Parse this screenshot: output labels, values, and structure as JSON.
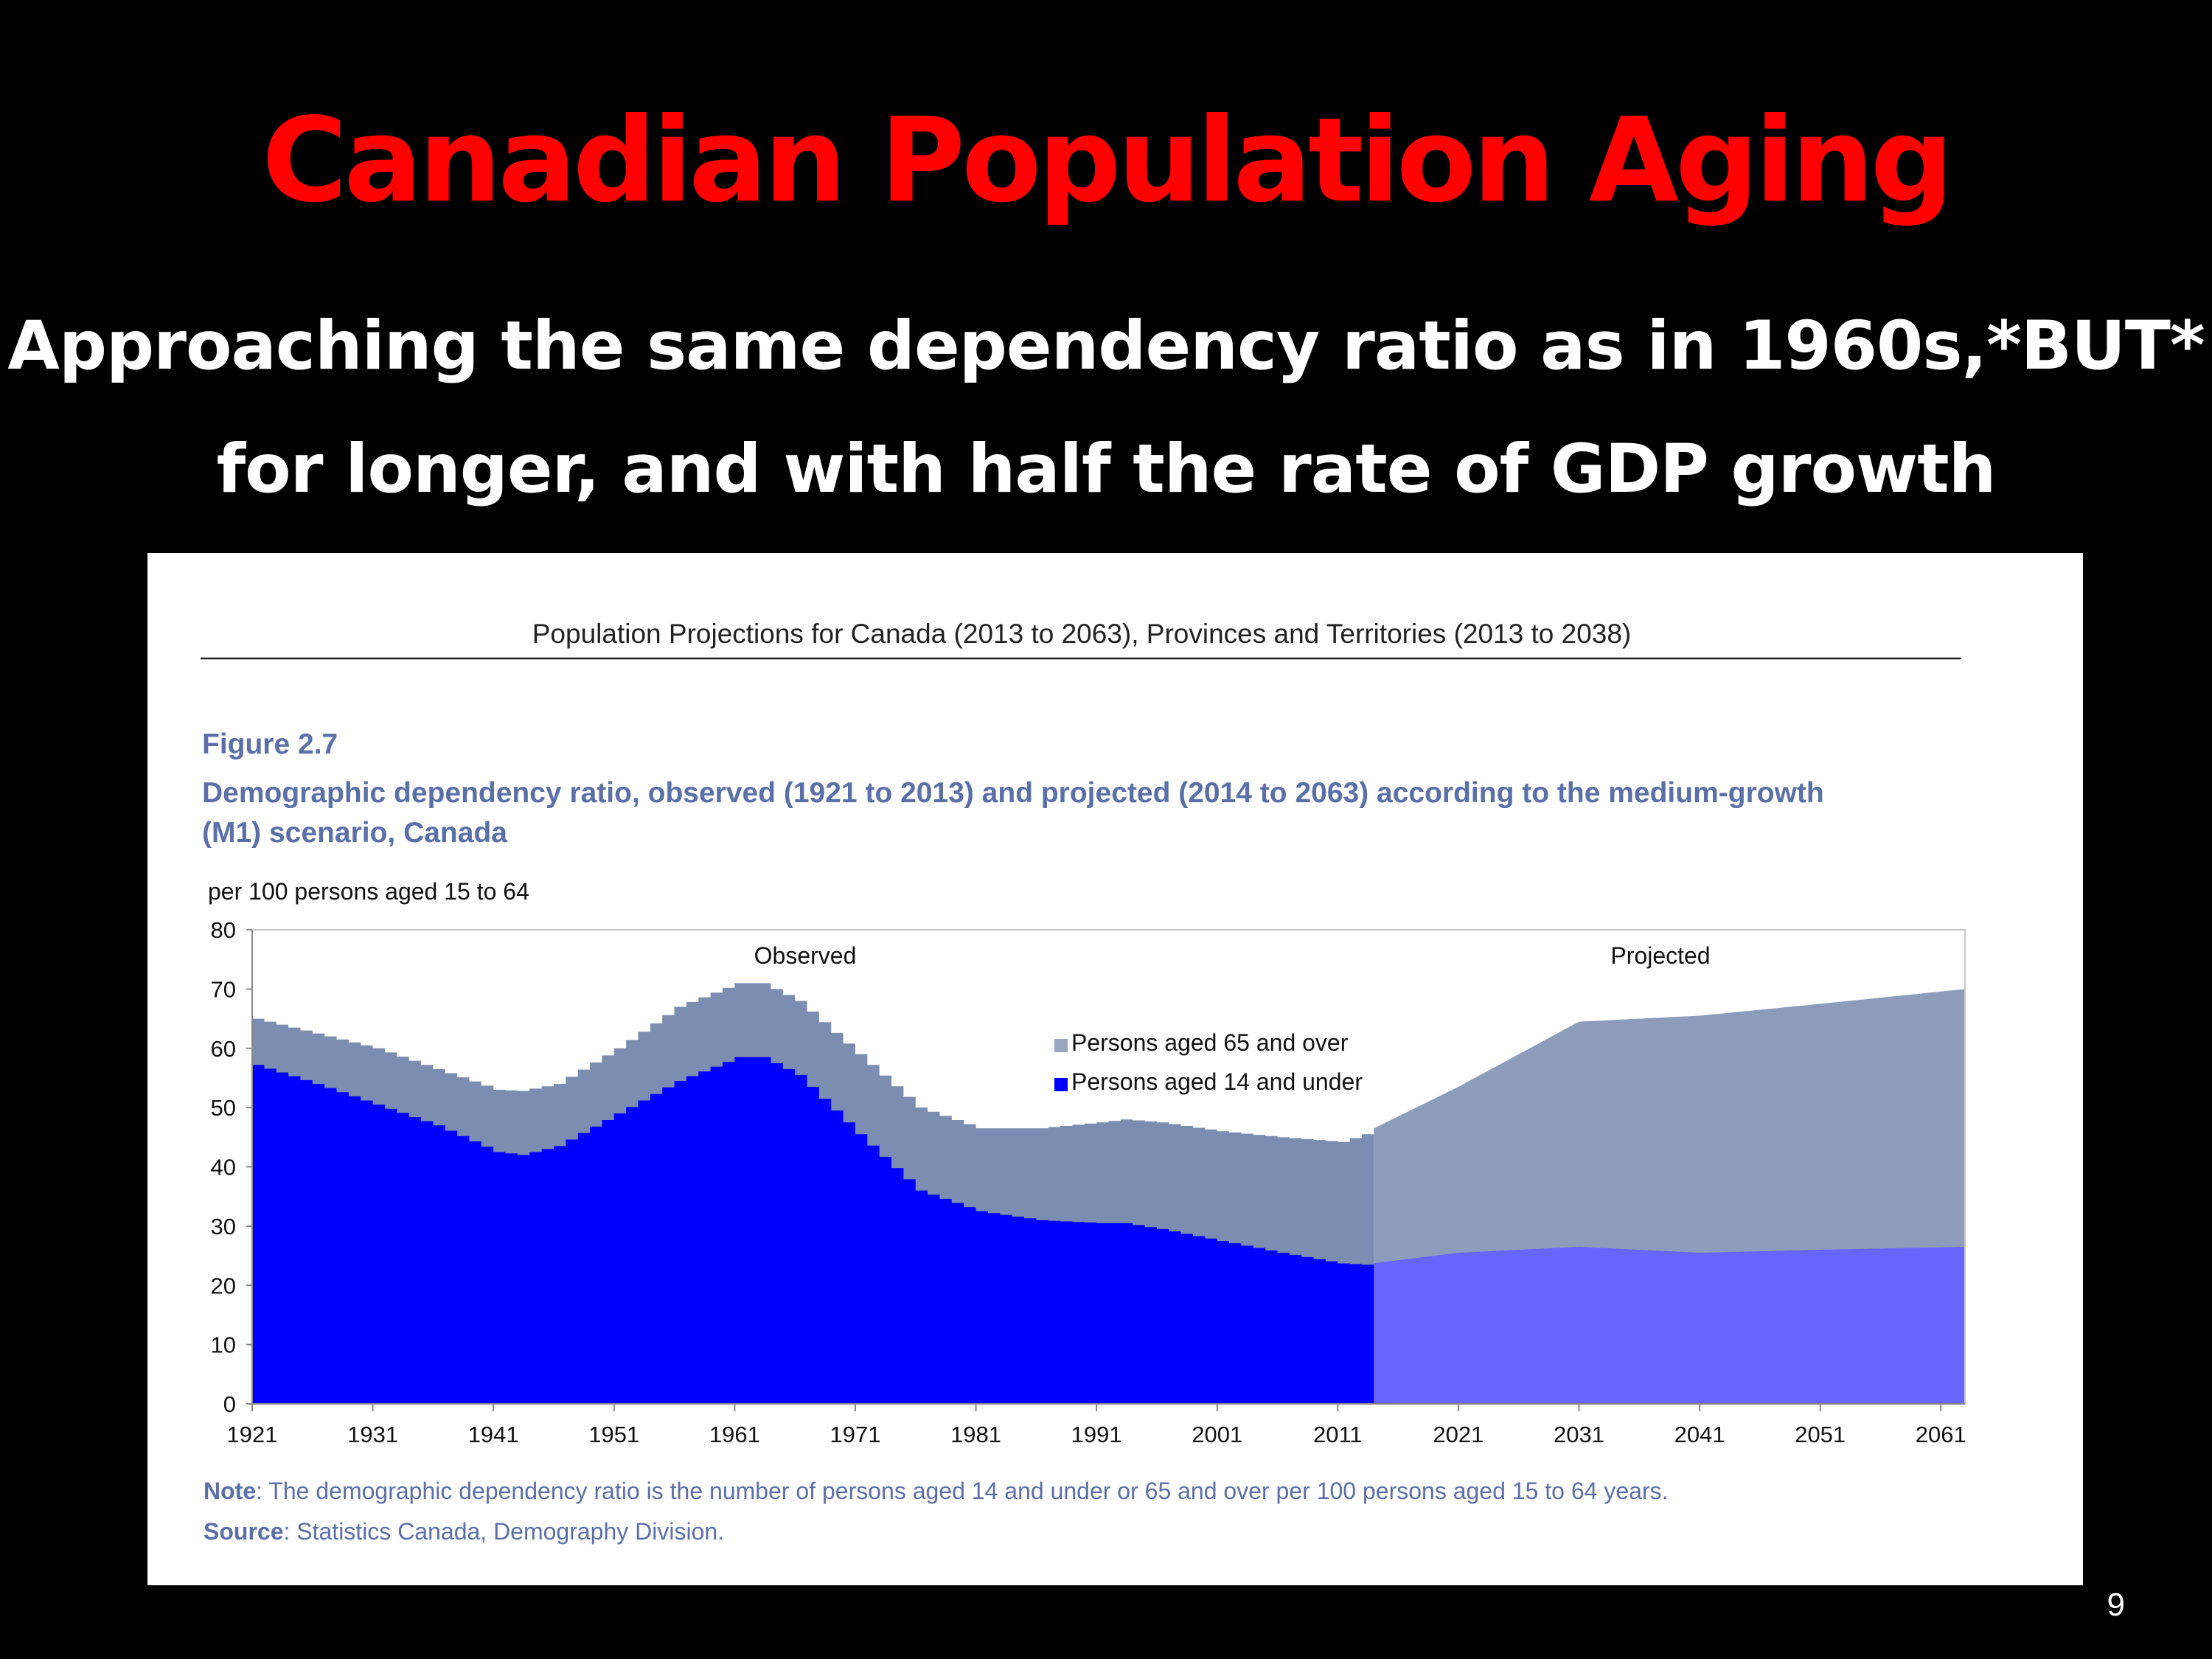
{
  "slide": {
    "title": "Canadian Population Aging",
    "subtitle_line1": "Approaching the same dependency ratio as in 1960s,*BUT*",
    "subtitle_line2": "for longer, and with half the rate of GDP growth",
    "page_number": "9"
  },
  "report": {
    "header": "Population Projections for Canada (2013 to 2063), Provinces and Territories (2013 to 2038)",
    "figure_label": "Figure 2.7",
    "figure_title_line1": "Demographic dependency ratio, observed (1921 to 2013) and projected (2014 to 2063) according to the medium-growth",
    "figure_title_line2": "(M1) scenario, Canada",
    "note_label": "Note",
    "note_text": ": The demographic dependency ratio is the number of persons aged 14 and under or 65 and over per 100 persons aged 15 to 64 years.",
    "source_label": "Source",
    "source_text": ": Statistics Canada, Demography Division."
  },
  "chart_data": {
    "type": "area",
    "stacked": true,
    "ylabel": "per 100 persons aged 15 to 64",
    "ylim": [
      0,
      80
    ],
    "yticks": [
      0,
      10,
      20,
      30,
      40,
      50,
      60,
      70,
      80
    ],
    "xlim": [
      1921,
      2063
    ],
    "xticks": [
      1921,
      1931,
      1941,
      1951,
      1961,
      1971,
      1981,
      1991,
      2001,
      2011,
      2021,
      2031,
      2041,
      2051,
      2061
    ],
    "grid": false,
    "legend_position": "center",
    "annotations": [
      "Observed",
      "Projected"
    ],
    "observed_range": [
      1921,
      2013
    ],
    "projected_range": [
      2014,
      2063
    ],
    "colors": {
      "young_observed": "#0000ff",
      "old_observed": "#7b8db0",
      "young_projected": "#6666ff",
      "old_projected": "#8c9cba"
    },
    "series": [
      {
        "name": "Persons aged 14 and under",
        "points": [
          [
            1921,
            57.2
          ],
          [
            1926,
            54
          ],
          [
            1931,
            50.5
          ],
          [
            1936,
            47
          ],
          [
            1941,
            42.5
          ],
          [
            1943,
            42
          ],
          [
            1946,
            43.5
          ],
          [
            1951,
            49
          ],
          [
            1956,
            54.5
          ],
          [
            1961,
            58.5
          ],
          [
            1963,
            58.5
          ],
          [
            1966,
            55.5
          ],
          [
            1971,
            45.5
          ],
          [
            1976,
            36
          ],
          [
            1981,
            32.5
          ],
          [
            1986,
            31
          ],
          [
            1991,
            30.5
          ],
          [
            1993,
            30.5
          ],
          [
            1996,
            29.5
          ],
          [
            2001,
            27.5
          ],
          [
            2006,
            25.5
          ],
          [
            2011,
            23.7
          ],
          [
            2013,
            23.5
          ],
          [
            2021,
            25.5
          ],
          [
            2031,
            26.5
          ],
          [
            2041,
            25.5
          ],
          [
            2051,
            26
          ],
          [
            2063,
            26.5
          ]
        ]
      },
      {
        "name": "Persons aged 65 and over",
        "points": [
          [
            1921,
            7.8
          ],
          [
            1926,
            8.5
          ],
          [
            1931,
            9.5
          ],
          [
            1936,
            9.5
          ],
          [
            1941,
            10.5
          ],
          [
            1943,
            10.8
          ],
          [
            1946,
            10.5
          ],
          [
            1951,
            11
          ],
          [
            1956,
            12.5
          ],
          [
            1961,
            12.5
          ],
          [
            1963,
            12.5
          ],
          [
            1966,
            12.5
          ],
          [
            1971,
            13.5
          ],
          [
            1976,
            14
          ],
          [
            1981,
            14
          ],
          [
            1986,
            15.5
          ],
          [
            1991,
            17
          ],
          [
            1993,
            17.5
          ],
          [
            1996,
            18
          ],
          [
            2001,
            18.5
          ],
          [
            2006,
            19.5
          ],
          [
            2011,
            20.5
          ],
          [
            2013,
            22
          ],
          [
            2021,
            28
          ],
          [
            2031,
            38
          ],
          [
            2041,
            40
          ],
          [
            2051,
            41.5
          ],
          [
            2063,
            43.5
          ]
        ]
      }
    ]
  }
}
